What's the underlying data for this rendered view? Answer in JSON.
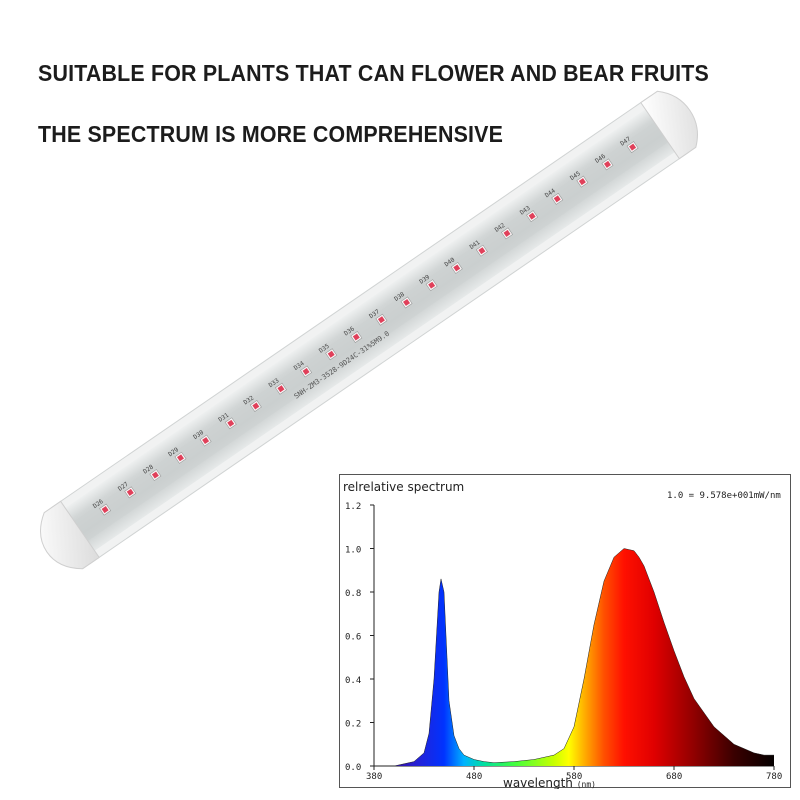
{
  "headlines": {
    "line1": "SUITABLE FOR PLANTS THAT CAN FLOWER AND BEAR FRUITS",
    "line2": "THE SPECTRUM IS MORE COMPREHENSIVE"
  },
  "lamp": {
    "led_labels": [
      "D26",
      "D27",
      "D28",
      "D29",
      "D30",
      "D31",
      "D32",
      "D33",
      "D34",
      "D35",
      "D36",
      "D37",
      "D38",
      "D39",
      "D40",
      "D41",
      "D42",
      "D43",
      "D44",
      "D45",
      "D46",
      "D47"
    ],
    "board_text": "SNH-ZM3-3528-9D24C-31%5M9.0",
    "colors": {
      "led": "#e0405a",
      "body": "#f4f4f4",
      "tube": "#d9dcdc"
    }
  },
  "chart_data": {
    "type": "area",
    "title": "relrelative spectrum",
    "scale_note": "1.0 = 9.578e+001mW/nm",
    "xlabel": "wavelength",
    "xunit": "(nm)",
    "ylabel": "",
    "xlim": [
      380,
      780
    ],
    "ylim": [
      0,
      1.2
    ],
    "x_ticks": [
      "380",
      "480",
      "580",
      "680",
      "780"
    ],
    "y_ticks": [
      "0.0",
      "0.2",
      "0.4",
      "0.6",
      "0.8",
      "1.0",
      "1.2"
    ],
    "grid": false,
    "series": [
      {
        "x": [
          380,
          400,
          420,
          430,
          435,
          440,
          445,
          447,
          450,
          453,
          455,
          460,
          465,
          470,
          480,
          490,
          500,
          520,
          540,
          560,
          570,
          580,
          590,
          600,
          610,
          620,
          630,
          640,
          645,
          650,
          660,
          670,
          680,
          690,
          700,
          720,
          740,
          760,
          770,
          780
        ],
        "y": [
          0.0,
          0.0,
          0.02,
          0.06,
          0.15,
          0.4,
          0.8,
          0.86,
          0.8,
          0.5,
          0.3,
          0.14,
          0.08,
          0.05,
          0.03,
          0.02,
          0.015,
          0.02,
          0.03,
          0.05,
          0.08,
          0.18,
          0.4,
          0.65,
          0.85,
          0.96,
          1.0,
          0.99,
          0.96,
          0.92,
          0.8,
          0.66,
          0.53,
          0.41,
          0.31,
          0.18,
          0.1,
          0.06,
          0.05,
          0.05
        ]
      }
    ]
  }
}
